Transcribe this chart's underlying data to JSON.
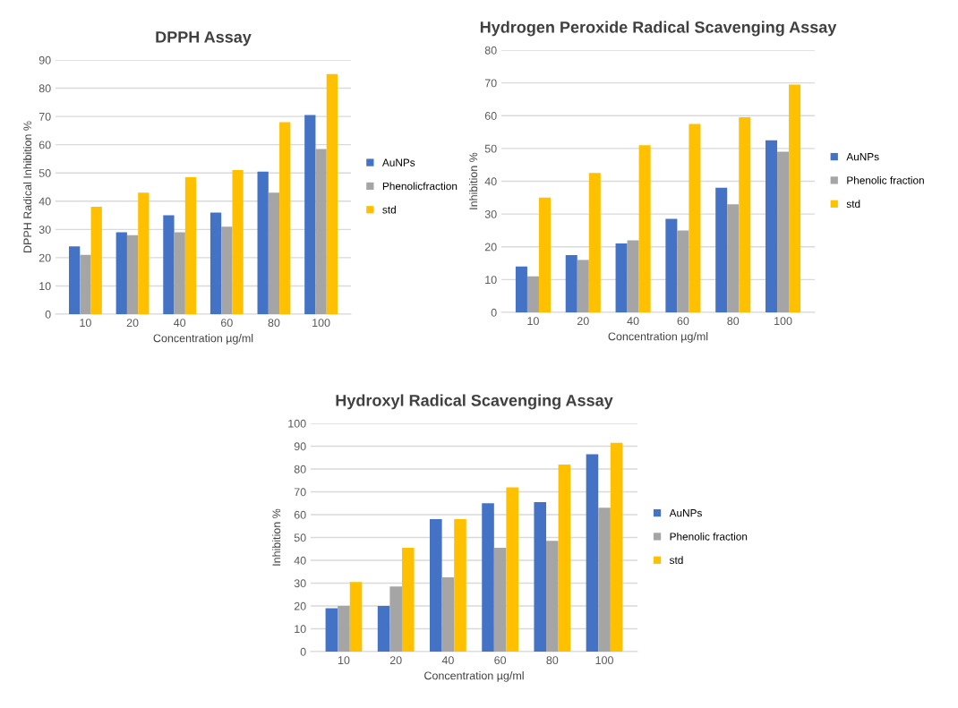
{
  "chart_data": [
    {
      "type": "bar",
      "title": "DPPH Assay",
      "xlabel": "Concentration µg/ml",
      "ylabel": "DPPH Radical Inhibition %",
      "categories": [
        "10",
        "20",
        "40",
        "60",
        "80",
        "100"
      ],
      "ylim": [
        0,
        90
      ],
      "yticks": [
        0,
        10,
        20,
        30,
        40,
        50,
        60,
        70,
        80,
        90
      ],
      "grid": "y",
      "legend": "right",
      "series": [
        {
          "name": "AuNPs",
          "color": "#4472c4",
          "values": [
            24,
            29,
            35,
            36,
            50.5,
            70.5
          ]
        },
        {
          "name": "Phenolicfraction",
          "color": "#a5a5a5",
          "values": [
            21,
            28,
            29,
            31,
            43,
            58.5
          ]
        },
        {
          "name": "std",
          "color": "#ffc000",
          "values": [
            38,
            43,
            48.5,
            51,
            68,
            85
          ]
        }
      ]
    },
    {
      "type": "bar",
      "title": "Hydrogen Peroxide Radical Scavenging Assay",
      "xlabel": "Concentration µg/ml",
      "ylabel": "Inhibition %",
      "categories": [
        "10",
        "20",
        "40",
        "60",
        "80",
        "100"
      ],
      "ylim": [
        0,
        80
      ],
      "yticks": [
        0,
        10,
        20,
        30,
        40,
        50,
        60,
        70,
        80
      ],
      "grid": "y",
      "legend": "right",
      "series": [
        {
          "name": "AuNPs",
          "color": "#4472c4",
          "values": [
            14,
            17.5,
            21,
            28.5,
            38,
            52.5
          ]
        },
        {
          "name": "Phenolic fraction",
          "color": "#a5a5a5",
          "values": [
            11,
            16,
            22,
            25,
            33,
            49
          ]
        },
        {
          "name": "std",
          "color": "#ffc000",
          "values": [
            35,
            42.5,
            51,
            57.5,
            59.5,
            69.5
          ]
        }
      ]
    },
    {
      "type": "bar",
      "title": "Hydroxyl Radical Scavenging Assay",
      "xlabel": "Concentration µg/ml",
      "ylabel": "Inhibition %",
      "categories": [
        "10",
        "20",
        "40",
        "60",
        "80",
        "100"
      ],
      "ylim": [
        0,
        100
      ],
      "yticks": [
        0,
        10,
        20,
        30,
        40,
        50,
        60,
        70,
        80,
        90,
        100
      ],
      "grid": "y",
      "legend": "right",
      "series": [
        {
          "name": "AuNPs",
          "color": "#4472c4",
          "values": [
            19,
            20,
            58,
            65,
            65.5,
            86.5
          ]
        },
        {
          "name": "Phenolic fraction",
          "color": "#a5a5a5",
          "values": [
            20,
            28.5,
            32.5,
            45.5,
            48.5,
            63
          ]
        },
        {
          "name": "std",
          "color": "#ffc000",
          "values": [
            30.5,
            45.5,
            58,
            72,
            82,
            91.5
          ]
        }
      ]
    }
  ]
}
